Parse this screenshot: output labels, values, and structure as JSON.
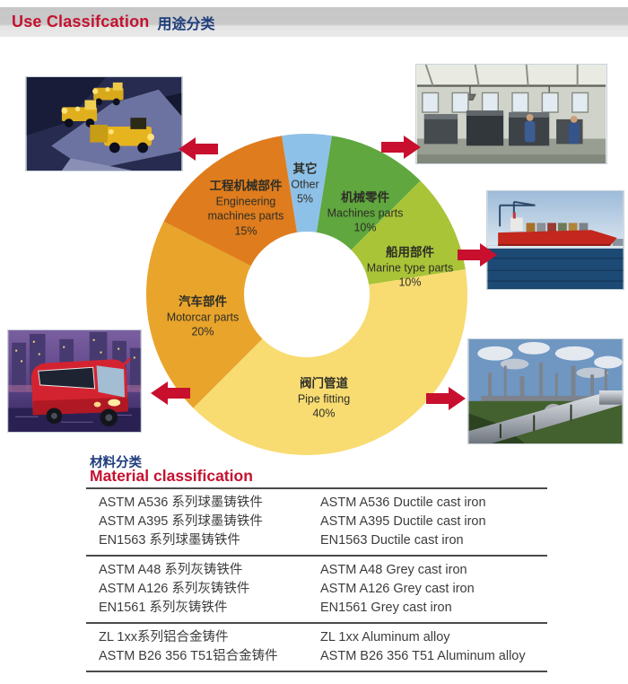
{
  "header": {
    "title_en": "Use Classifcation",
    "title_zh": "用途分类"
  },
  "colors": {
    "accent_red": "#c8102e",
    "heading_red": "#c41230",
    "heading_navy": "#1e3d7c"
  },
  "chart_data": {
    "type": "pie",
    "donut": true,
    "start_angle_deg": -9,
    "unit": "%",
    "title": "Use Classifcation 用途分类",
    "legend_position": "on-slices",
    "segments": [
      {
        "label_zh": "其它",
        "label_en": "Other",
        "value": 5,
        "color": "#8ec1e8"
      },
      {
        "label_zh": "机械零件",
        "label_en": "Machines parts",
        "value": 10,
        "color": "#5fa73e"
      },
      {
        "label_zh": "船用部件",
        "label_en": "Marine type parts",
        "value": 10,
        "color": "#a9c437"
      },
      {
        "label_zh": "阀门管道",
        "label_en": "Pipe fitting",
        "value": 40,
        "color": "#f8dc72"
      },
      {
        "label_zh": "汽车部件",
        "label_en": "Motorcar parts",
        "value": 20,
        "color": "#e9a42b"
      },
      {
        "label_zh": "工程机械部件",
        "label_en": "Engineering machines parts",
        "value": 15,
        "color": "#df7c1d"
      }
    ]
  },
  "photos": [
    {
      "id": "construction-machinery",
      "alt": "Yellow engineering machines in quarry at night"
    },
    {
      "id": "machine-workshop",
      "alt": "Workshop with lathes and workers"
    },
    {
      "id": "cargo-ship",
      "alt": "Red cargo ship at sea"
    },
    {
      "id": "motor-coach",
      "alt": "Red motor coach in night city"
    },
    {
      "id": "pipeline-plant",
      "alt": "Refinery pipelines and towers"
    }
  ],
  "material": {
    "title_zh": "材料分类",
    "title_en": "Material classification",
    "groups": [
      {
        "rows": [
          {
            "zh": "ASTM A536 系列球墨铸铁件",
            "en": "ASTM A536 Ductile cast iron"
          },
          {
            "zh": "ASTM A395 系列球墨铸铁件",
            "en": "ASTM A395 Ductile cast iron"
          },
          {
            "zh": "EN1563  系列球墨铸铁件",
            "en": "EN1563  Ductile cast iron"
          }
        ]
      },
      {
        "rows": [
          {
            "zh": "ASTM A48  系列灰铸铁件",
            "en": "ASTM A48 Grey cast iron"
          },
          {
            "zh": "ASTM A126  系列灰铸铁件",
            "en": "ASTM A126 Grey cast iron"
          },
          {
            "zh": "EN1561  系列灰铸铁件",
            "en": "EN1561 Grey cast iron"
          }
        ]
      },
      {
        "rows": [
          {
            "zh": "ZL 1xx系列铝合金铸件",
            "en": "ZL 1xx Aluminum alloy"
          },
          {
            "zh": "ASTM B26 356 T51铝合金铸件",
            "en": "ASTM B26 356 T51 Aluminum alloy"
          }
        ]
      }
    ]
  }
}
